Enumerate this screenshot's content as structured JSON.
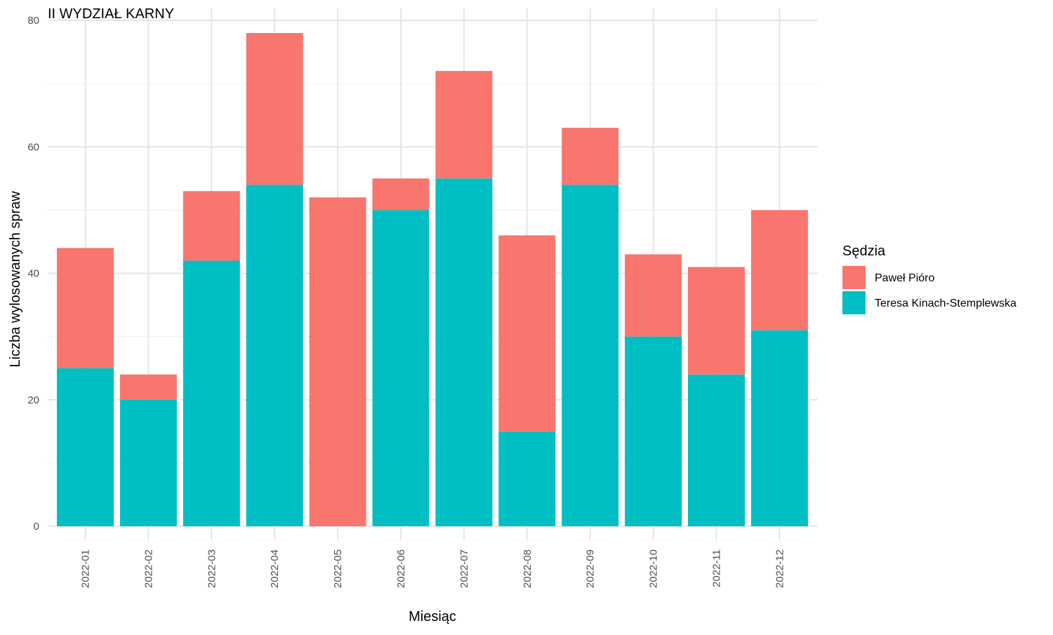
{
  "chart_data": {
    "type": "bar",
    "stacked": true,
    "title": "II WYDZIAŁ KARNY",
    "xlabel": "Miesiąc",
    "ylabel": "Liczba wylosowanych spraw",
    "categories": [
      "2022-01",
      "2022-02",
      "2022-03",
      "2022-04",
      "2022-05",
      "2022-06",
      "2022-07",
      "2022-08",
      "2022-09",
      "2022-10",
      "2022-11",
      "2022-12"
    ],
    "series": [
      {
        "name": "Teresa Kinach-Stemplewska",
        "color": "#00BFC4",
        "values": [
          25,
          20,
          42,
          54,
          0,
          50,
          55,
          15,
          54,
          30,
          24,
          31
        ]
      },
      {
        "name": "Paweł Pióro",
        "color": "#F8766D",
        "values": [
          19,
          4,
          11,
          24,
          52,
          5,
          17,
          31,
          9,
          13,
          17,
          19
        ]
      }
    ],
    "ylim": [
      0,
      80
    ],
    "yticks": [
      0,
      20,
      40,
      60,
      80
    ],
    "grid": true,
    "legend": {
      "title": "Sędzia",
      "placement": "right",
      "entries": [
        "Paweł Pióro",
        "Teresa Kinach-Stemplewska"
      ]
    }
  }
}
